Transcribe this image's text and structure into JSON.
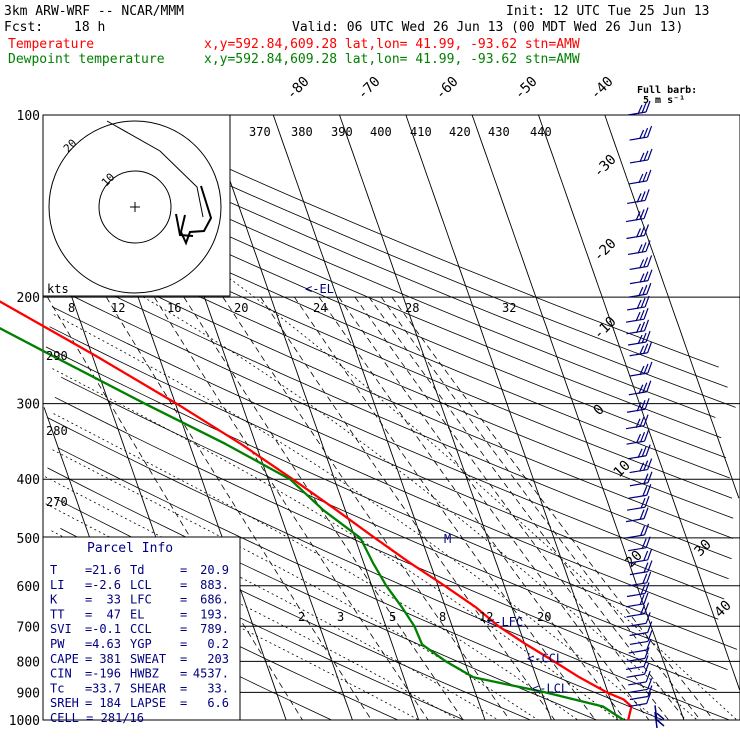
{
  "header": {
    "model": "3km ARW-WRF -- NCAR/MMM",
    "init": "Init: 12 UTC Tue 25 Jun 13",
    "fcst_label": "Fcst:",
    "fcst_value": "18 h",
    "valid": "Valid: 06 UTC Wed 26 Jun 13 (00 MDT Wed 26 Jun 13)",
    "temp_label": "Temperature",
    "temp_info": "x,y=592.84,609.28   lat,lon= 41.99, -93.62  stn=AMW",
    "dew_label": "Dewpoint temperature",
    "dew_info": "x,y=592.84,609.28   lat,lon= 41.99, -93.62  stn=AMW",
    "barb_title": "Full barb:",
    "barb_unit": "5 m s⁻¹"
  },
  "colors": {
    "temperature": "#ff0000",
    "dewpoint": "#008000",
    "header_temp": "#ff0000",
    "header_dew": "#008000",
    "labels": "#000080",
    "grid": "#000000"
  },
  "chart_data": {
    "type": "line",
    "title": "",
    "xlabel": "",
    "ylabel": "",
    "y_log_scale": true,
    "pressure_levels": [
      "100",
      "200",
      "300",
      "400",
      "500",
      "600",
      "700",
      "800",
      "900",
      "1000"
    ],
    "isotherm_labels": [
      "-80",
      "-70",
      "-60",
      "-50",
      "-40",
      "-30",
      "-20",
      "-10",
      "0",
      "10",
      "20",
      "30",
      "40"
    ],
    "isentrope_labels_top": [
      "370",
      "380",
      "390",
      "400",
      "410",
      "420",
      "430",
      "440"
    ],
    "isentrope_labels_left": [
      "290",
      "280",
      "270"
    ],
    "mixing_ratio_labels_upper": [
      "8",
      "12",
      "16",
      "20",
      "24",
      "28",
      "32"
    ],
    "mixing_ratio_labels_lower": [
      "2",
      "3",
      "5",
      "8",
      "12",
      "20"
    ],
    "series": [
      {
        "name": "Temperature",
        "points": [
          {
            "p": 1000,
            "t": 21.6
          },
          {
            "p": 950,
            "t": 22.8
          },
          {
            "p": 925,
            "t": 22.0
          },
          {
            "p": 900,
            "t": 19.8
          },
          {
            "p": 850,
            "t": 16.5
          },
          {
            "p": 800,
            "t": 13.5
          },
          {
            "p": 750,
            "t": 10.2
          },
          {
            "p": 700,
            "t": 7.0
          },
          {
            "p": 650,
            "t": 4.5
          },
          {
            "p": 600,
            "t": 1.0
          },
          {
            "p": 550,
            "t": -3.0
          },
          {
            "p": 500,
            "t": -7.0
          },
          {
            "p": 450,
            "t": -11.3
          },
          {
            "p": 400,
            "t": -16.3
          },
          {
            "p": 350,
            "t": -22.2
          },
          {
            "p": 300,
            "t": -29.8
          },
          {
            "p": 250,
            "t": -39.5
          },
          {
            "p": 200,
            "t": -52.0
          },
          {
            "p": 175,
            "t": -58.6
          },
          {
            "p": 160,
            "t": -61.2
          },
          {
            "p": 150,
            "t": -60.5
          },
          {
            "p": 135,
            "t": -58.0
          },
          {
            "p": 120,
            "t": -56.5
          },
          {
            "p": 110,
            "t": -57.0
          },
          {
            "p": 100,
            "t": -59.5
          }
        ]
      },
      {
        "name": "Dewpoint temperature",
        "points": [
          {
            "p": 1000,
            "t": 20.9
          },
          {
            "p": 950,
            "t": 18.5
          },
          {
            "p": 900,
            "t": 10.5
          },
          {
            "p": 850,
            "t": 0.5
          },
          {
            "p": 800,
            "t": -2.8
          },
          {
            "p": 750,
            "t": -5.5
          },
          {
            "p": 700,
            "t": -5.7
          },
          {
            "p": 650,
            "t": -6.6
          },
          {
            "p": 600,
            "t": -7.8
          },
          {
            "p": 550,
            "t": -8.6
          },
          {
            "p": 500,
            "t": -9.2
          },
          {
            "p": 450,
            "t": -13.3
          },
          {
            "p": 400,
            "t": -16.7
          },
          {
            "p": 350,
            "t": -24.5
          },
          {
            "p": 300,
            "t": -34.6
          },
          {
            "p": 250,
            "t": -46.0
          },
          {
            "p": 200,
            "t": -59.8
          },
          {
            "p": 175,
            "t": -66.0
          },
          {
            "p": 150,
            "t": -70.0
          },
          {
            "p": 135,
            "t": -71.0
          },
          {
            "p": 120,
            "t": -72.0
          },
          {
            "p": 110,
            "t": -76.0
          },
          {
            "p": 100,
            "t": -80.0
          }
        ]
      }
    ],
    "level_markers": [
      {
        "label": "<-EL",
        "p": 193
      },
      {
        "label": "M",
        "p": 500
      },
      {
        "label": "<-LFC",
        "p": 686
      },
      {
        "label": "<-CCL",
        "p": 789
      },
      {
        "label": "<-LCL",
        "p": 883
      }
    ],
    "wind_barbs_p": [
      100,
      110,
      120,
      130,
      140,
      150,
      160,
      170,
      180,
      190,
      200,
      210,
      220,
      230,
      240,
      250,
      270,
      290,
      310,
      330,
      350,
      370,
      390,
      410,
      430,
      450,
      470,
      500,
      525,
      550,
      575,
      600,
      625,
      650,
      675,
      700,
      725,
      750,
      775,
      800,
      825,
      850,
      875,
      900,
      925,
      950,
      975,
      1000
    ]
  },
  "hodograph": {
    "units_label": "kts",
    "ring_labels": [
      "20",
      "10"
    ]
  },
  "parcel_info": {
    "title": "Parcel Info",
    "rows": [
      {
        "l1": "T",
        "v1": "21.6",
        "l2": "Td",
        "v2": "20.9"
      },
      {
        "l1": "LI",
        "v1": "-2.6",
        "l2": "LCL",
        "v2": "883."
      },
      {
        "l1": "K",
        "v1": "33",
        "l2": "LFC",
        "v2": "686."
      },
      {
        "l1": "TT",
        "v1": "47",
        "l2": "EL",
        "v2": "193."
      },
      {
        "l1": "SVI",
        "v1": "-0.1",
        "l2": "CCL",
        "v2": "789."
      },
      {
        "l1": "PW",
        "v1": "4.63",
        "l2": "YGP",
        "v2": "0.2"
      },
      {
        "l1": "CAPE",
        "v1": "381",
        "l2": "SWEAT",
        "v2": "203"
      },
      {
        "l1": "CIN",
        "v1": "-196",
        "l2": "HWBZ",
        "v2": "4537."
      },
      {
        "l1": "Tc",
        "v1": "33.7",
        "l2": "SHEAR",
        "v2": "33."
      },
      {
        "l1": "SREH",
        "v1": "184",
        "l2": "LAPSE",
        "v2": "6.6"
      }
    ],
    "cell_label": "CELL =",
    "cell_value": "281/16"
  }
}
